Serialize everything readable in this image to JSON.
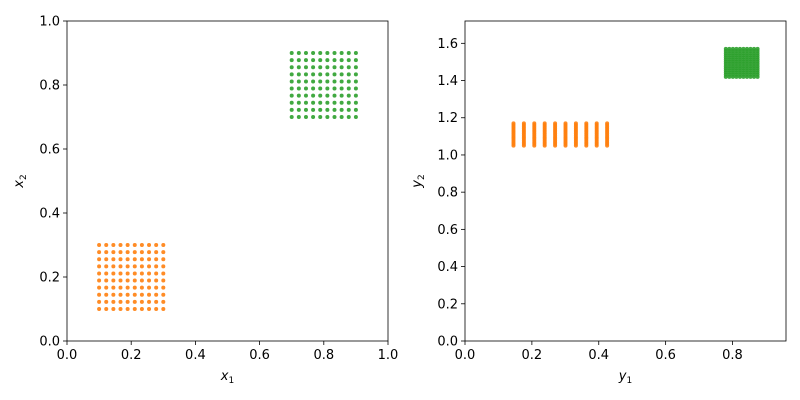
{
  "chart_data": [
    {
      "type": "scatter",
      "xlabel": {
        "base": "x",
        "sub": "1"
      },
      "ylabel": {
        "base": "x",
        "sub": "2"
      },
      "xlim": [
        0,
        1
      ],
      "ylim": [
        0,
        1
      ],
      "xticks": [
        "0.0",
        "0.2",
        "0.4",
        "0.6",
        "0.8",
        "1.0"
      ],
      "yticks": [
        "0.0",
        "0.2",
        "0.4",
        "0.6",
        "0.8",
        "1.0"
      ],
      "grid": false,
      "series": [
        {
          "color": "#ff7f0e",
          "grid_points": {
            "x_start": 0.1,
            "x_end": 0.3,
            "x_count": 10,
            "y_start": 0.1,
            "y_end": 0.3,
            "y_count": 10
          }
        },
        {
          "color": "#2ca02c",
          "grid_points": {
            "x_start": 0.7,
            "x_end": 0.9,
            "x_count": 10,
            "y_start": 0.7,
            "y_end": 0.9,
            "y_count": 10
          }
        }
      ]
    },
    {
      "type": "scatter",
      "xlabel": {
        "base": "y",
        "sub": "1"
      },
      "ylabel": {
        "base": "y",
        "sub": "2"
      },
      "xlim": [
        0,
        0.96
      ],
      "ylim": [
        0,
        1.72
      ],
      "xticks": [
        "0.0",
        "0.2",
        "0.4",
        "0.6",
        "0.8"
      ],
      "yticks": [
        "0.0",
        "0.2",
        "0.4",
        "0.6",
        "0.8",
        "1.0",
        "1.2",
        "1.4",
        "1.6"
      ],
      "grid": false,
      "series": [
        {
          "color": "#ff7f0e",
          "grid_points": {
            "x_start": 0.145,
            "x_end": 0.425,
            "x_count": 10,
            "y_start": 1.05,
            "y_end": 1.17,
            "y_count": 14
          }
        },
        {
          "color": "#2ca02c",
          "grid_points": {
            "x_start": 0.78,
            "x_end": 0.875,
            "x_count": 10,
            "y_start": 1.42,
            "y_end": 1.57,
            "y_count": 14
          }
        }
      ]
    }
  ]
}
